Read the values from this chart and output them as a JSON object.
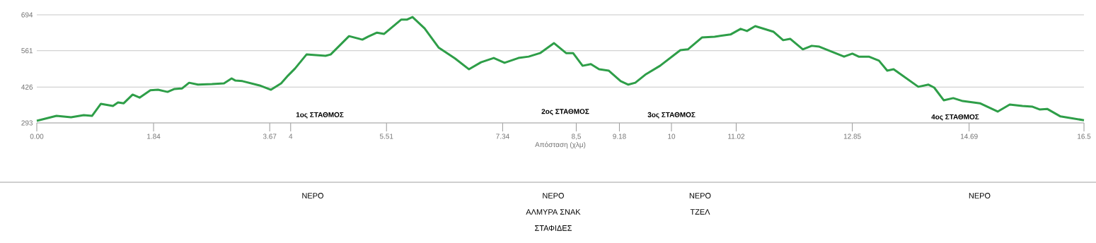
{
  "chart_data": {
    "type": "line",
    "xlabel": "Απόσταση (χλμ)",
    "xlim": [
      0,
      16.5
    ],
    "ylim": [
      293,
      694
    ],
    "xticks": [
      {
        "value": 0,
        "label": "0.00"
      },
      1.84,
      3.67,
      {
        "value": 4,
        "label": "4"
      },
      5.51,
      7.34,
      {
        "value": 8.5,
        "label": "8,5"
      },
      9.18,
      {
        "value": 10,
        "label": "10"
      },
      11.02,
      12.85,
      14.69,
      16.5
    ],
    "yticks": [
      293,
      426,
      561,
      694
    ],
    "grid": "y",
    "series": [
      {
        "color": "#2e9e48",
        "x": [
          0,
          0.31,
          0.54,
          0.74,
          0.87,
          1.01,
          1.2,
          1.28,
          1.37,
          1.51,
          1.62,
          1.79,
          1.91,
          2.06,
          2.17,
          2.29,
          2.4,
          2.54,
          2.76,
          2.95,
          3.07,
          3.13,
          3.24,
          3.51,
          3.69,
          3.85,
          3.96,
          4.07,
          4.25,
          4.36,
          4.55,
          4.63,
          4.92,
          5.13,
          5.22,
          5.36,
          5.47,
          5.74,
          5.83,
          5.92,
          6.11,
          6.33,
          6.59,
          6.81,
          7.0,
          7.2,
          7.37,
          7.59,
          7.75,
          7.93,
          8.15,
          8.34,
          8.45,
          8.6,
          8.73,
          8.86,
          9.01,
          9.2,
          9.32,
          9.43,
          9.6,
          9.82,
          10.14,
          10.26,
          10.48,
          10.68,
          10.93,
          11.09,
          11.19,
          11.32,
          11.61,
          11.76,
          11.87,
          12.07,
          12.21,
          12.33,
          12.72,
          12.85,
          12.95,
          13.11,
          13.27,
          13.4,
          13.5,
          13.61,
          13.89,
          14.05,
          14.14,
          14.29,
          14.44,
          14.59,
          14.86,
          15.14,
          15.33,
          15.53,
          15.69,
          15.8,
          15.92,
          16.13,
          16.5
        ],
        "values": [
          301,
          319,
          314,
          322,
          319,
          364,
          356,
          369,
          366,
          398,
          387,
          414,
          416,
          408,
          419,
          421,
          442,
          435,
          437,
          440,
          458,
          450,
          448,
          432,
          416,
          440,
          469,
          495,
          547,
          545,
          542,
          547,
          615,
          602,
          613,
          628,
          623,
          676,
          676,
          686,
          644,
          573,
          532,
          492,
          518,
          534,
          516,
          534,
          539,
          552,
          589,
          552,
          552,
          505,
          511,
          492,
          487,
          448,
          435,
          442,
          474,
          505,
          563,
          566,
          610,
          613,
          621,
          642,
          634,
          652,
          631,
          600,
          605,
          566,
          579,
          576,
          539,
          550,
          539,
          539,
          524,
          487,
          492,
          474,
          427,
          435,
          424,
          377,
          385,
          374,
          366,
          335,
          361,
          356,
          353,
          343,
          345,
          317,
          303
        ]
      }
    ],
    "annotations": [
      "1ος ΣΤΑΘΜΟΣ",
      "2ος ΣΤΑΘΜΟΣ",
      "3ος ΣΤΑΘΜΟΣ",
      "4ος ΣΤΑΘΜΟΣ",
      "ΝΕΡΟ",
      "ΝΕΡΟ",
      "ΑΛΜΥΡΑ ΣΝΑΚ",
      "ΣΤΑΦΙΔΕΣ",
      "ΝΕΡΟ",
      "ΤΖΕΛ",
      "ΝΕΡΟ"
    ]
  }
}
